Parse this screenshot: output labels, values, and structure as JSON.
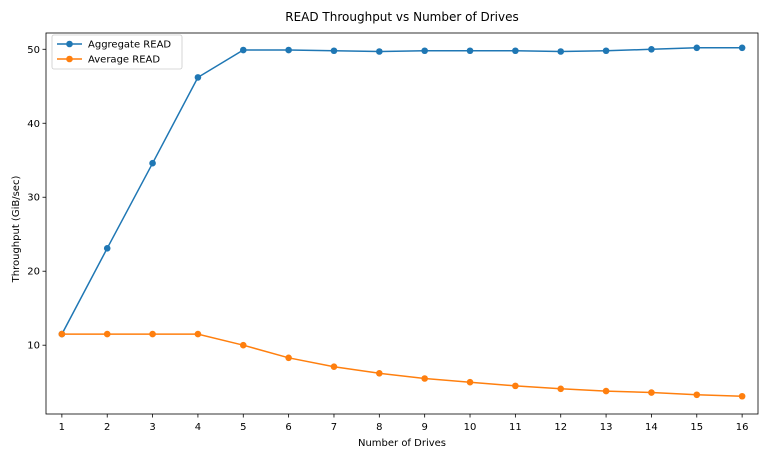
{
  "chart_data": {
    "type": "line",
    "title": "READ Throughput vs Number of Drives",
    "xlabel": "Number of Drives",
    "ylabel": "Throughput (GiB/sec)",
    "x": [
      1,
      2,
      3,
      4,
      5,
      6,
      7,
      8,
      9,
      10,
      11,
      12,
      13,
      14,
      15,
      16
    ],
    "xlim": [
      0.65,
      16.35
    ],
    "ylim": [
      0.7,
      52.2
    ],
    "yticks": [
      10,
      20,
      30,
      40,
      50
    ],
    "grid": false,
    "legend_position": "top-left",
    "series": [
      {
        "name": "Aggregate READ",
        "color": "#1f77b4",
        "values": [
          11.5,
          23.1,
          34.6,
          46.2,
          49.9,
          49.9,
          49.8,
          49.7,
          49.8,
          49.8,
          49.8,
          49.7,
          49.8,
          50.0,
          50.2,
          50.2
        ]
      },
      {
        "name": "Average READ",
        "color": "#ff7f0e",
        "values": [
          11.5,
          11.5,
          11.5,
          11.5,
          10.0,
          8.3,
          7.1,
          6.2,
          5.5,
          5.0,
          4.5,
          4.1,
          3.8,
          3.6,
          3.3,
          3.1
        ]
      }
    ]
  }
}
